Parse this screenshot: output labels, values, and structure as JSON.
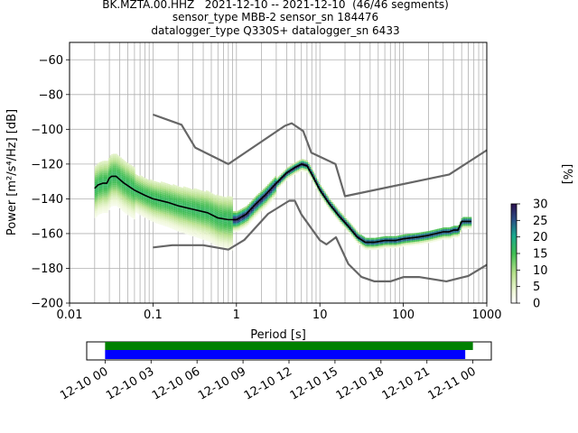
{
  "title_lines": [
    "BK.MZTA.00.HHZ   2021-12-10 -- 2021-12-10  (46/46 segments)",
    "sensor_type MBB-2 sensor_sn 184476",
    "datalogger_type Q330S+ datalogger_sn 6433"
  ],
  "chart_data": [
    {
      "type": "heatmap",
      "name": "ppsd",
      "xlabel": "Period [s]",
      "ylabel": "Power [m²/s⁴/Hz] [dB]",
      "xscale": "log",
      "xlim": [
        0.01,
        1000
      ],
      "ylim": [
        -200,
        -50
      ],
      "xticks": [
        0.01,
        0.1,
        1,
        10,
        100,
        1000
      ],
      "xtick_labels": [
        "0.01",
        "0.1",
        "1",
        "10",
        "100",
        "1000"
      ],
      "yticks": [
        -60,
        -80,
        -100,
        -120,
        -140,
        -160,
        -180,
        -200
      ],
      "ytick_labels": [
        "−60",
        "−80",
        "−100",
        "−120",
        "−140",
        "−160",
        "−180",
        "−200"
      ],
      "grid": true,
      "colorbar": {
        "label": "[%]",
        "range": [
          0,
          30
        ],
        "ticks": [
          0,
          5,
          10,
          15,
          20,
          25,
          30
        ],
        "tick_labels": [
          "0",
          "5",
          "10",
          "15",
          "20",
          "25",
          "30"
        ],
        "colormap": "pqlx"
      },
      "mean_curve": {
        "x": [
          0.02,
          0.022,
          0.025,
          0.028,
          0.03,
          0.032,
          0.036,
          0.045,
          0.06,
          0.08,
          0.1,
          0.15,
          0.2,
          0.3,
          0.45,
          0.6,
          0.8,
          1.0,
          1.3,
          1.7,
          2.2,
          3.0,
          4.0,
          5.0,
          6.0,
          7.0,
          8.0,
          10,
          13,
          17,
          22,
          28,
          35,
          45,
          60,
          80,
          100,
          150,
          200,
          300,
          350,
          400,
          450,
          500,
          650
        ],
        "y": [
          -134,
          -132,
          -131,
          -131,
          -128,
          -127,
          -127,
          -131,
          -135,
          -138,
          -140,
          -142,
          -144,
          -146,
          -148,
          -151,
          -152,
          -152,
          -149,
          -143,
          -138,
          -131,
          -125,
          -122,
          -120,
          -121,
          -126,
          -135,
          -143,
          -150,
          -156,
          -162,
          -165,
          -165,
          -164,
          -164,
          -163,
          -162,
          -161,
          -159,
          -159,
          -158,
          -158,
          -153,
          -153
        ]
      },
      "noise_models": [
        {
          "name": "NHNM",
          "x": [
            0.1,
            0.22,
            0.32,
            0.8,
            3.8,
            4.6,
            6.3,
            7.9,
            15.4,
            20,
            354.8,
            1000
          ],
          "y": [
            -91.5,
            -97.4,
            -110.5,
            -120,
            -98,
            -96.5,
            -101,
            -113.5,
            -120,
            -138.5,
            -126,
            -112
          ]
        },
        {
          "name": "NLNM",
          "x": [
            0.1,
            0.17,
            0.4,
            0.8,
            1.24,
            2.4,
            4.3,
            5.0,
            6.0,
            10,
            12,
            15.6,
            21.9,
            31.6,
            45,
            70,
            101,
            154,
            328,
            600,
            1000
          ],
          "y": [
            -168,
            -166.7,
            -166.7,
            -169.2,
            -163.7,
            -148.6,
            -141.1,
            -141.1,
            -149,
            -163.8,
            -166.2,
            -162.1,
            -177.5,
            -185,
            -187.5,
            -187.5,
            -185,
            -185,
            -187.5,
            -184.4,
            -178
          ]
        }
      ]
    },
    {
      "type": "timeline",
      "name": "data-coverage",
      "xtick_labels": [
        "12-10 00",
        "12-10 03",
        "12-10 06",
        "12-10 09",
        "12-10 12",
        "12-10 15",
        "12-10 18",
        "12-10 21",
        "12-11 00"
      ],
      "xtick_hours": [
        0,
        3,
        6,
        9,
        12,
        15,
        18,
        21,
        24
      ],
      "xlim_hours": [
        -1.2,
        25.2
      ],
      "bars": [
        {
          "name": "data",
          "start_hour": 0,
          "end_hour": 24,
          "color": "#008000"
        },
        {
          "name": "processed",
          "start_hour": 0,
          "end_hour": 23.5,
          "color": "#0000ff"
        }
      ]
    }
  ]
}
